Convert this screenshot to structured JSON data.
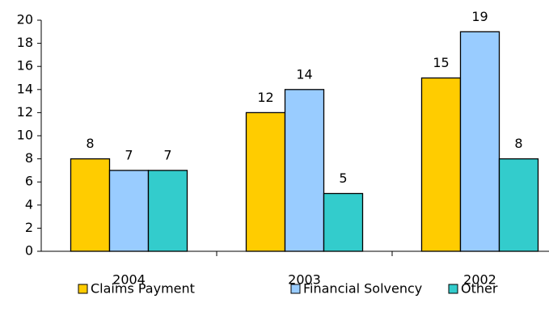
{
  "chart_data": {
    "type": "bar",
    "categories": [
      "2004",
      "2003",
      "2002"
    ],
    "series": [
      {
        "name": "Claims Payment",
        "color": "#ffcc00",
        "values": [
          8,
          12,
          15
        ]
      },
      {
        "name": "Financial Solvency",
        "color": "#99ccff",
        "values": [
          7,
          14,
          19
        ]
      },
      {
        "name": "Other",
        "color": "#33cccc",
        "values": [
          7,
          5,
          8
        ]
      }
    ],
    "ylim": [
      0,
      20
    ],
    "yticks": [
      0,
      2,
      4,
      6,
      8,
      10,
      12,
      14,
      16,
      18,
      20
    ],
    "grid": false,
    "legend": "bottom"
  }
}
